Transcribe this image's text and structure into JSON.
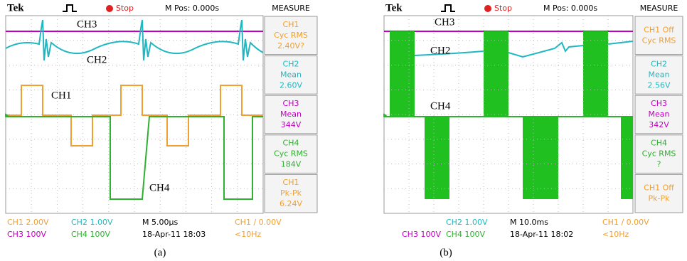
{
  "panels": [
    {
      "header": {
        "brand": "Tek",
        "status": "Stop",
        "position": "M Pos: 0.000s",
        "menu": "MEASURE"
      },
      "trace_labels": [
        "CH3",
        "CH2",
        "CH1",
        "CH4"
      ],
      "measurements": [
        {
          "lines": [
            "CH1",
            "Cyc RMS",
            "2.40V?"
          ]
        },
        {
          "lines": [
            "CH2",
            "Mean",
            "2.60V"
          ]
        },
        {
          "lines": [
            "CH3",
            "Mean",
            "344V"
          ]
        },
        {
          "lines": [
            "CH4",
            "Cyc RMS",
            "184V"
          ]
        },
        {
          "lines": [
            "CH1",
            "Pk-Pk",
            "6.24V"
          ]
        }
      ],
      "footer": {
        "row1": [
          "CH1  2.00V",
          "CH2  1.00V",
          "M 5.00µs",
          "CH1 ∕ 0.00V"
        ],
        "row2": [
          "CH3  100V",
          "CH4  100V",
          "18-Apr-11 18:03",
          "<10Hz"
        ]
      },
      "caption": "(a)"
    },
    {
      "header": {
        "brand": "Tek",
        "status": "Stop",
        "position": "M Pos: 0.000s",
        "menu": "MEASURE"
      },
      "trace_labels": [
        "CH3",
        "CH2",
        "CH4"
      ],
      "measurements": [
        {
          "lines": [
            "CH1 Off",
            "Cyc RMS"
          ]
        },
        {
          "lines": [
            "CH2",
            "Mean",
            "2.56V"
          ]
        },
        {
          "lines": [
            "CH3",
            "Mean",
            "342V"
          ]
        },
        {
          "lines": [
            "CH4",
            "Cyc RMS",
            "?"
          ]
        },
        {
          "lines": [
            "CH1 Off",
            "Pk-Pk"
          ]
        }
      ],
      "footer": {
        "row1": [
          "CH2  1.00V",
          "M 10.0ms",
          "CH1 ∕ 0.00V"
        ],
        "row2": [
          "CH3  100V",
          "CH4  100V",
          "18-Apr-11 18:02",
          "<10Hz"
        ]
      },
      "caption": "(b)"
    }
  ]
}
